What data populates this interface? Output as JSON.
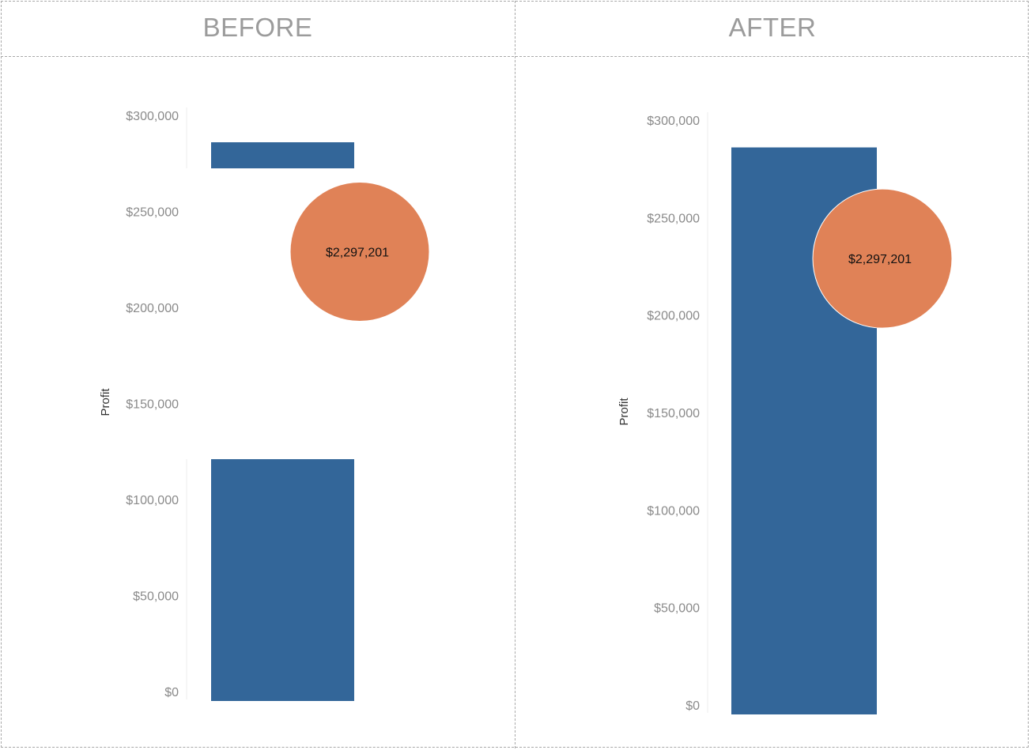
{
  "panels": {
    "before": {
      "title": "BEFORE"
    },
    "after": {
      "title": "AFTER"
    }
  },
  "colors": {
    "bar": "#336699",
    "bubble": "#e08257",
    "divider": "#a8a8a8"
  },
  "chart_data": [
    {
      "type": "bar",
      "panel": "BEFORE",
      "ylabel": "Profit",
      "ylim": [
        0,
        300000
      ],
      "yticks": [
        0,
        50000,
        100000,
        150000,
        200000,
        250000,
        300000
      ],
      "ytick_labels": [
        "$0",
        "$50,000",
        "$100,000",
        "$150,000",
        "$200,000",
        "$250,000",
        "$300,000"
      ],
      "axis_break": [
        122000,
        270000
      ],
      "categories": [
        ""
      ],
      "values": [
        286000
      ],
      "bubble": {
        "value_label": "$2,297,201",
        "y": 229000
      },
      "grid": false
    },
    {
      "type": "bar",
      "panel": "AFTER",
      "ylabel": "Profit",
      "ylim": [
        0,
        300000
      ],
      "yticks": [
        0,
        50000,
        100000,
        150000,
        200000,
        250000,
        300000
      ],
      "ytick_labels": [
        "$0",
        "$50,000",
        "$100,000",
        "$150,000",
        "$200,000",
        "$250,000",
        "$300,000"
      ],
      "categories": [
        ""
      ],
      "values": [
        286000
      ],
      "bubble": {
        "value_label": "$2,297,201",
        "y": 229000
      },
      "grid": false
    }
  ]
}
